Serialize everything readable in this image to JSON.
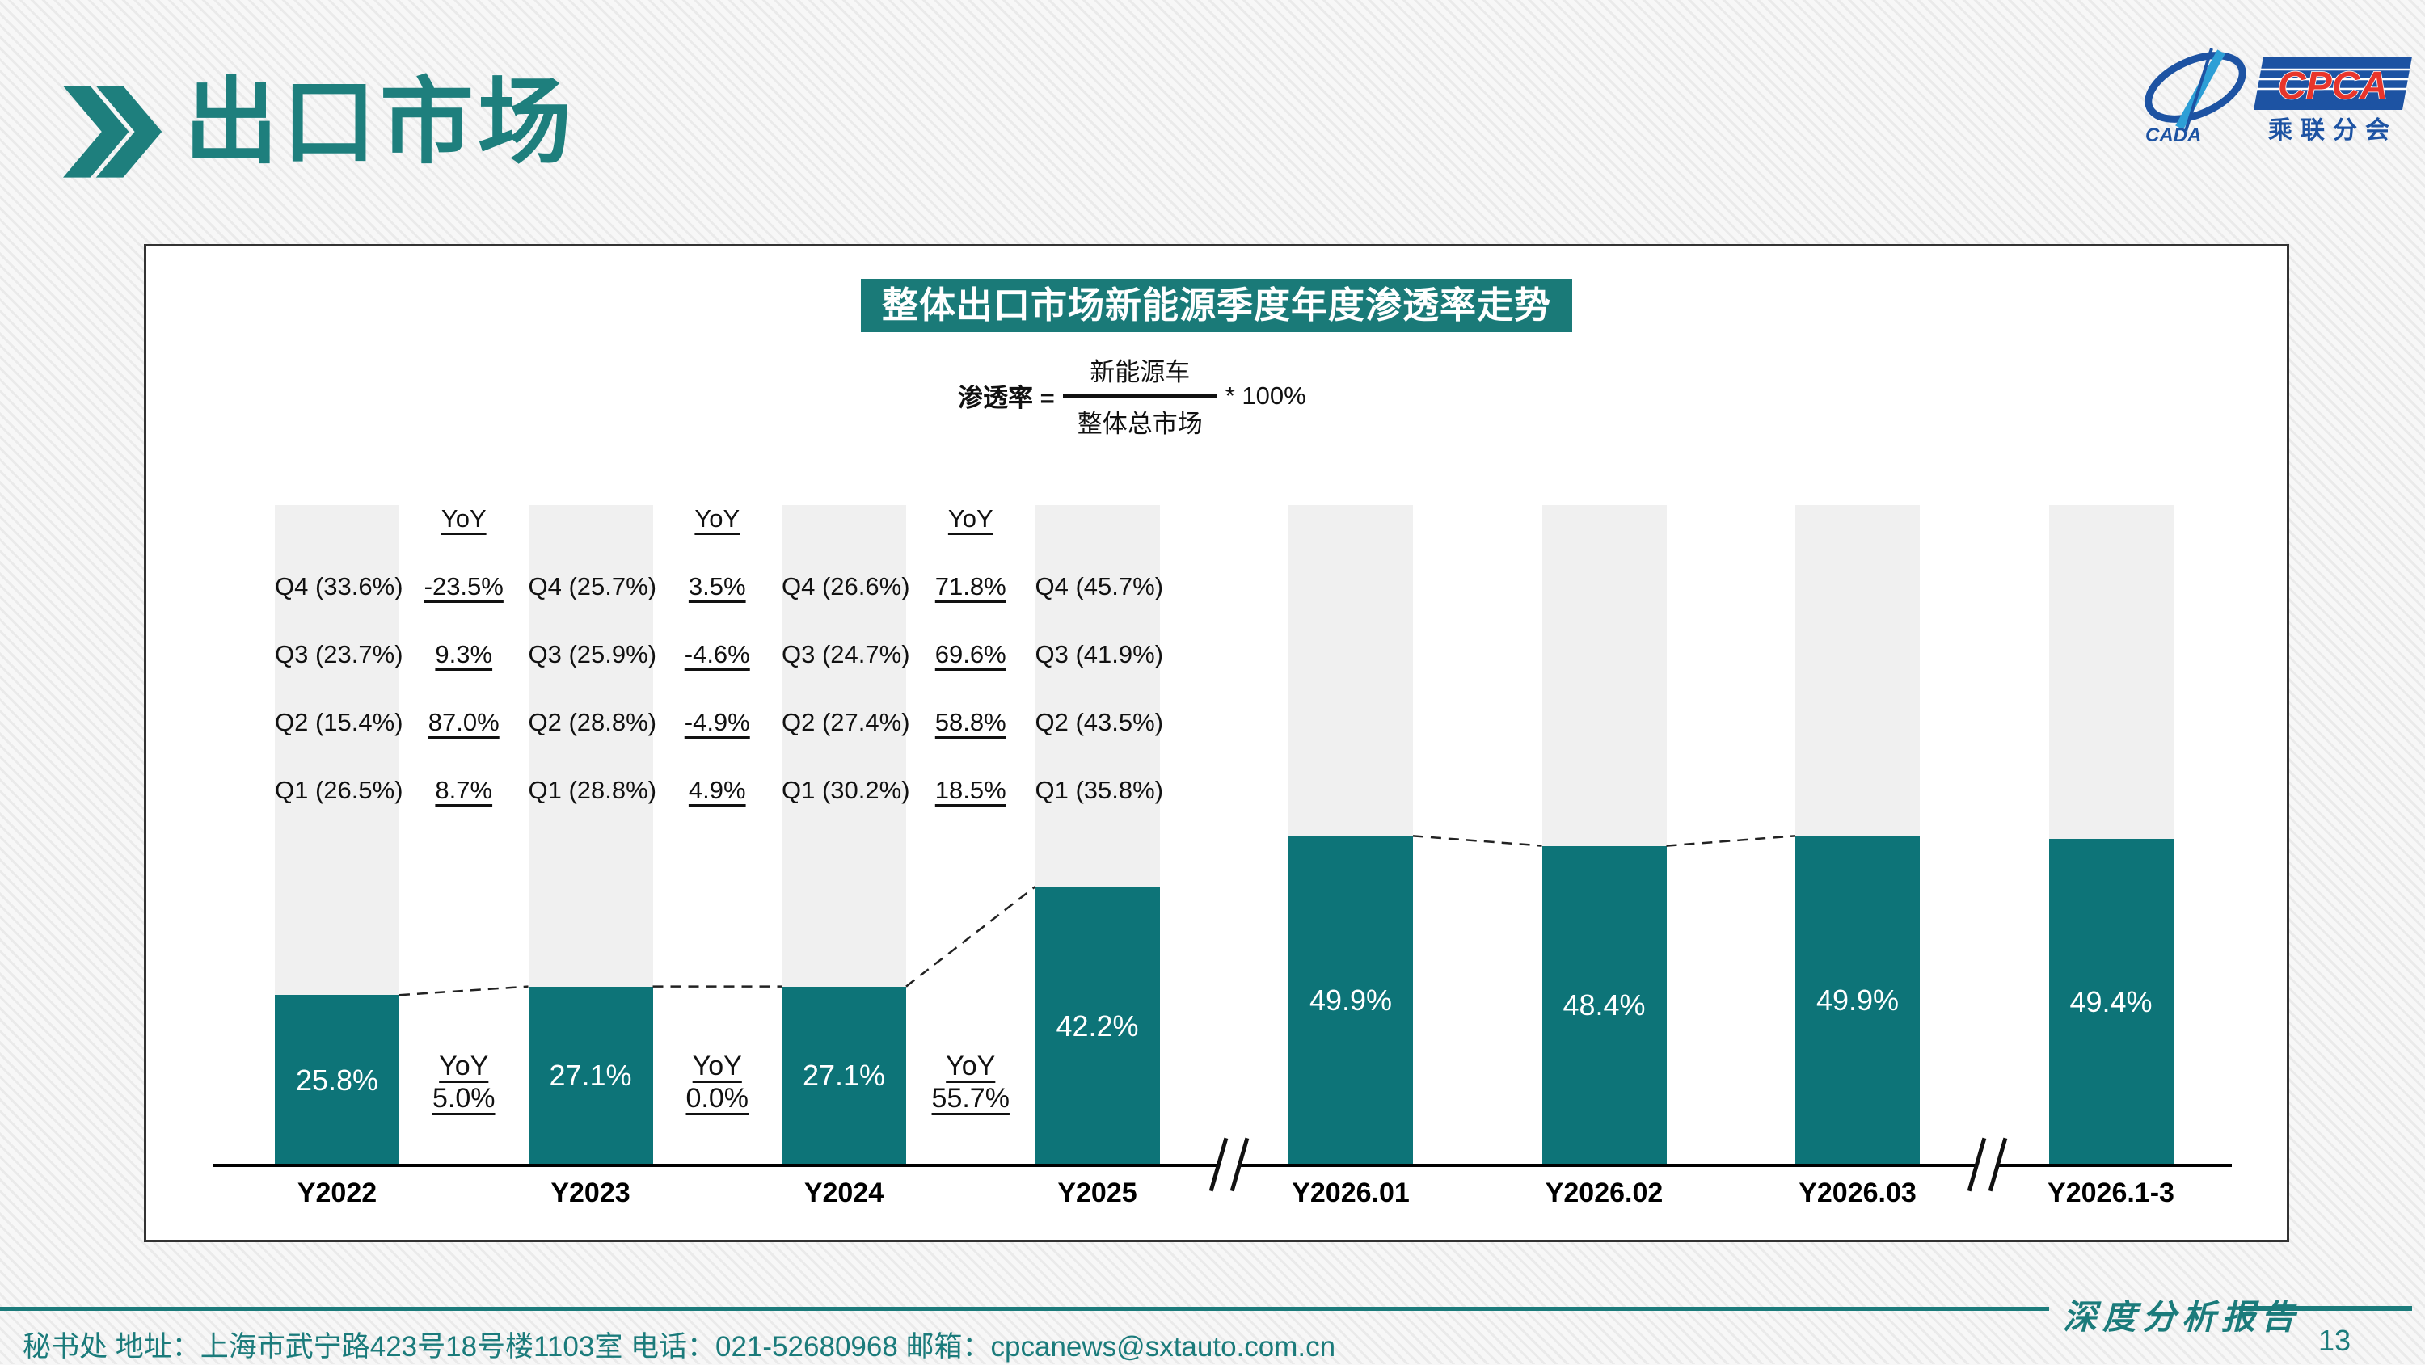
{
  "header": {
    "title": "出口市场"
  },
  "logo": {
    "cpca": "CPCA",
    "cada": "CADA",
    "subtitle": "乘联分会"
  },
  "chart_data": {
    "type": "bar",
    "title": "整体出口市场新能源季度年度渗透率走势",
    "formula": {
      "lhs": "渗透率 =",
      "numerator": "新能源车",
      "denominator": "整体总市场",
      "suffix": "* 100%"
    },
    "categories": [
      "Y2022",
      "Y2023",
      "Y2024",
      "Y2025",
      "Y2026.01",
      "Y2026.02",
      "Y2026.03",
      "Y2026.1-3"
    ],
    "values": [
      25.8,
      27.1,
      27.1,
      42.2,
      49.9,
      48.4,
      49.9,
      49.4
    ],
    "unit": "%",
    "ylim": [
      0,
      100
    ],
    "quarterly": [
      {
        "year": "Y2022",
        "Q4": 33.6,
        "Q3": 23.7,
        "Q2": 15.4,
        "Q1": 26.5
      },
      {
        "year": "Y2023",
        "Q4": 25.7,
        "Q3": 25.9,
        "Q2": 28.8,
        "Q1": 28.8
      },
      {
        "year": "Y2024",
        "Q4": 26.6,
        "Q3": 24.7,
        "Q2": 27.4,
        "Q1": 30.2
      },
      {
        "year": "Y2025",
        "Q4": 45.7,
        "Q3": 41.9,
        "Q2": 43.5,
        "Q1": 35.8
      }
    ],
    "quarterly_yoy": [
      {
        "label": "YoY",
        "values": [
          "-23.5%",
          "9.3%",
          "87.0%",
          "8.7%"
        ]
      },
      {
        "label": "YoY",
        "values": [
          "3.5%",
          "-4.6%",
          "-4.9%",
          "4.9%"
        ]
      },
      {
        "label": "YoY",
        "values": [
          "71.8%",
          "69.6%",
          "58.8%",
          "18.5%"
        ]
      }
    ],
    "annual_yoy": [
      {
        "label": "YoY",
        "value": "5.0%"
      },
      {
        "label": "YoY",
        "value": "0.0%"
      },
      {
        "label": "YoY",
        "value": "55.7%"
      }
    ],
    "axis_breaks_after": [
      "Y2025",
      "Y2026.03"
    ]
  },
  "footer": {
    "left": "秘书处  地址：上海市武宁路423号18号楼1103室 电话：021-52680968  邮箱：cpcanews@sxtauto.com.cn",
    "report_label": "深度分析报告",
    "page": "13"
  },
  "colors": {
    "bar_teal": "#0d7478",
    "bar_track_gray": "#f0f0f0",
    "accent_teal": "#1e7f7d",
    "banner_bg": "#1a7a78",
    "logo_blue": "#1d53a3",
    "cpca_red": "#e8352b"
  }
}
